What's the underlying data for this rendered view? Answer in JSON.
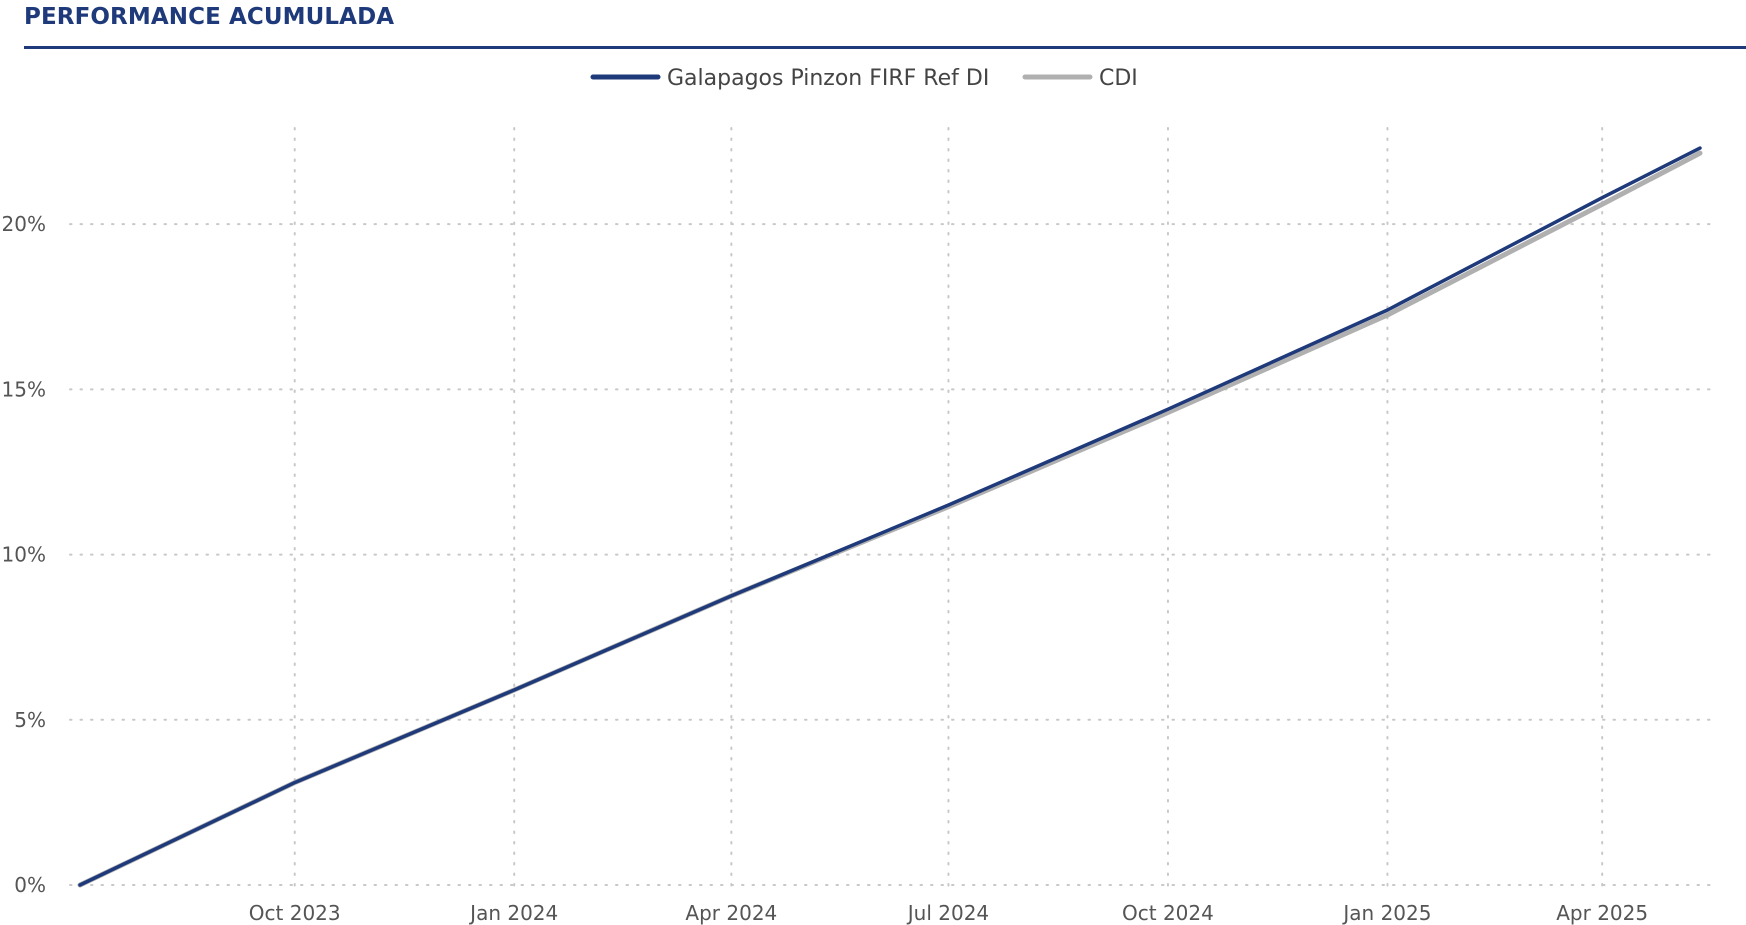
{
  "title": "PERFORMANCE ACUMULADA",
  "colors": {
    "title": "#1f3a7a",
    "fund": "#1f3a7a",
    "cdi": "#b0b0b0",
    "grid": "#c8c8c8",
    "tick": "#555555"
  },
  "chart_data": {
    "type": "line",
    "legend_position": "top-center",
    "grid": true,
    "x_range": [
      "2023-07-03",
      "2025-05-12"
    ],
    "ylim": [
      0,
      0.23
    ],
    "y_ticks": [
      0,
      0.05,
      0.1,
      0.15,
      0.2
    ],
    "y_tick_labels": [
      "0%",
      "5%",
      "10%",
      "15%",
      "20%"
    ],
    "x_ticks": [
      "2023-10-01",
      "2024-01-01",
      "2024-04-01",
      "2024-07-01",
      "2024-10-01",
      "2025-01-01",
      "2025-04-01"
    ],
    "x_tick_labels": [
      "Oct 2023",
      "Jan 2024",
      "Apr 2024",
      "Jul 2024",
      "Oct 2024",
      "Jan 2025",
      "Apr 2025"
    ],
    "series": [
      {
        "name": "Galapagos Pinzon FIRF Ref DI",
        "color": "#1f3a7a",
        "x": [
          "2023-07-03",
          "2023-10-01",
          "2024-01-01",
          "2024-04-01",
          "2024-07-01",
          "2024-10-01",
          "2025-01-01",
          "2025-04-01",
          "2025-05-12"
        ],
        "y": [
          0.0,
          0.031,
          0.059,
          0.0875,
          0.115,
          0.144,
          0.174,
          0.208,
          0.223
        ]
      },
      {
        "name": "CDI",
        "color": "#b0b0b0",
        "x": [
          "2023-07-03",
          "2023-10-01",
          "2024-01-01",
          "2024-04-01",
          "2024-07-01",
          "2024-10-01",
          "2025-01-01",
          "2025-04-01",
          "2025-05-12"
        ],
        "y": [
          0.0,
          0.031,
          0.059,
          0.0875,
          0.1145,
          0.143,
          0.1725,
          0.206,
          0.2215
        ]
      }
    ]
  }
}
